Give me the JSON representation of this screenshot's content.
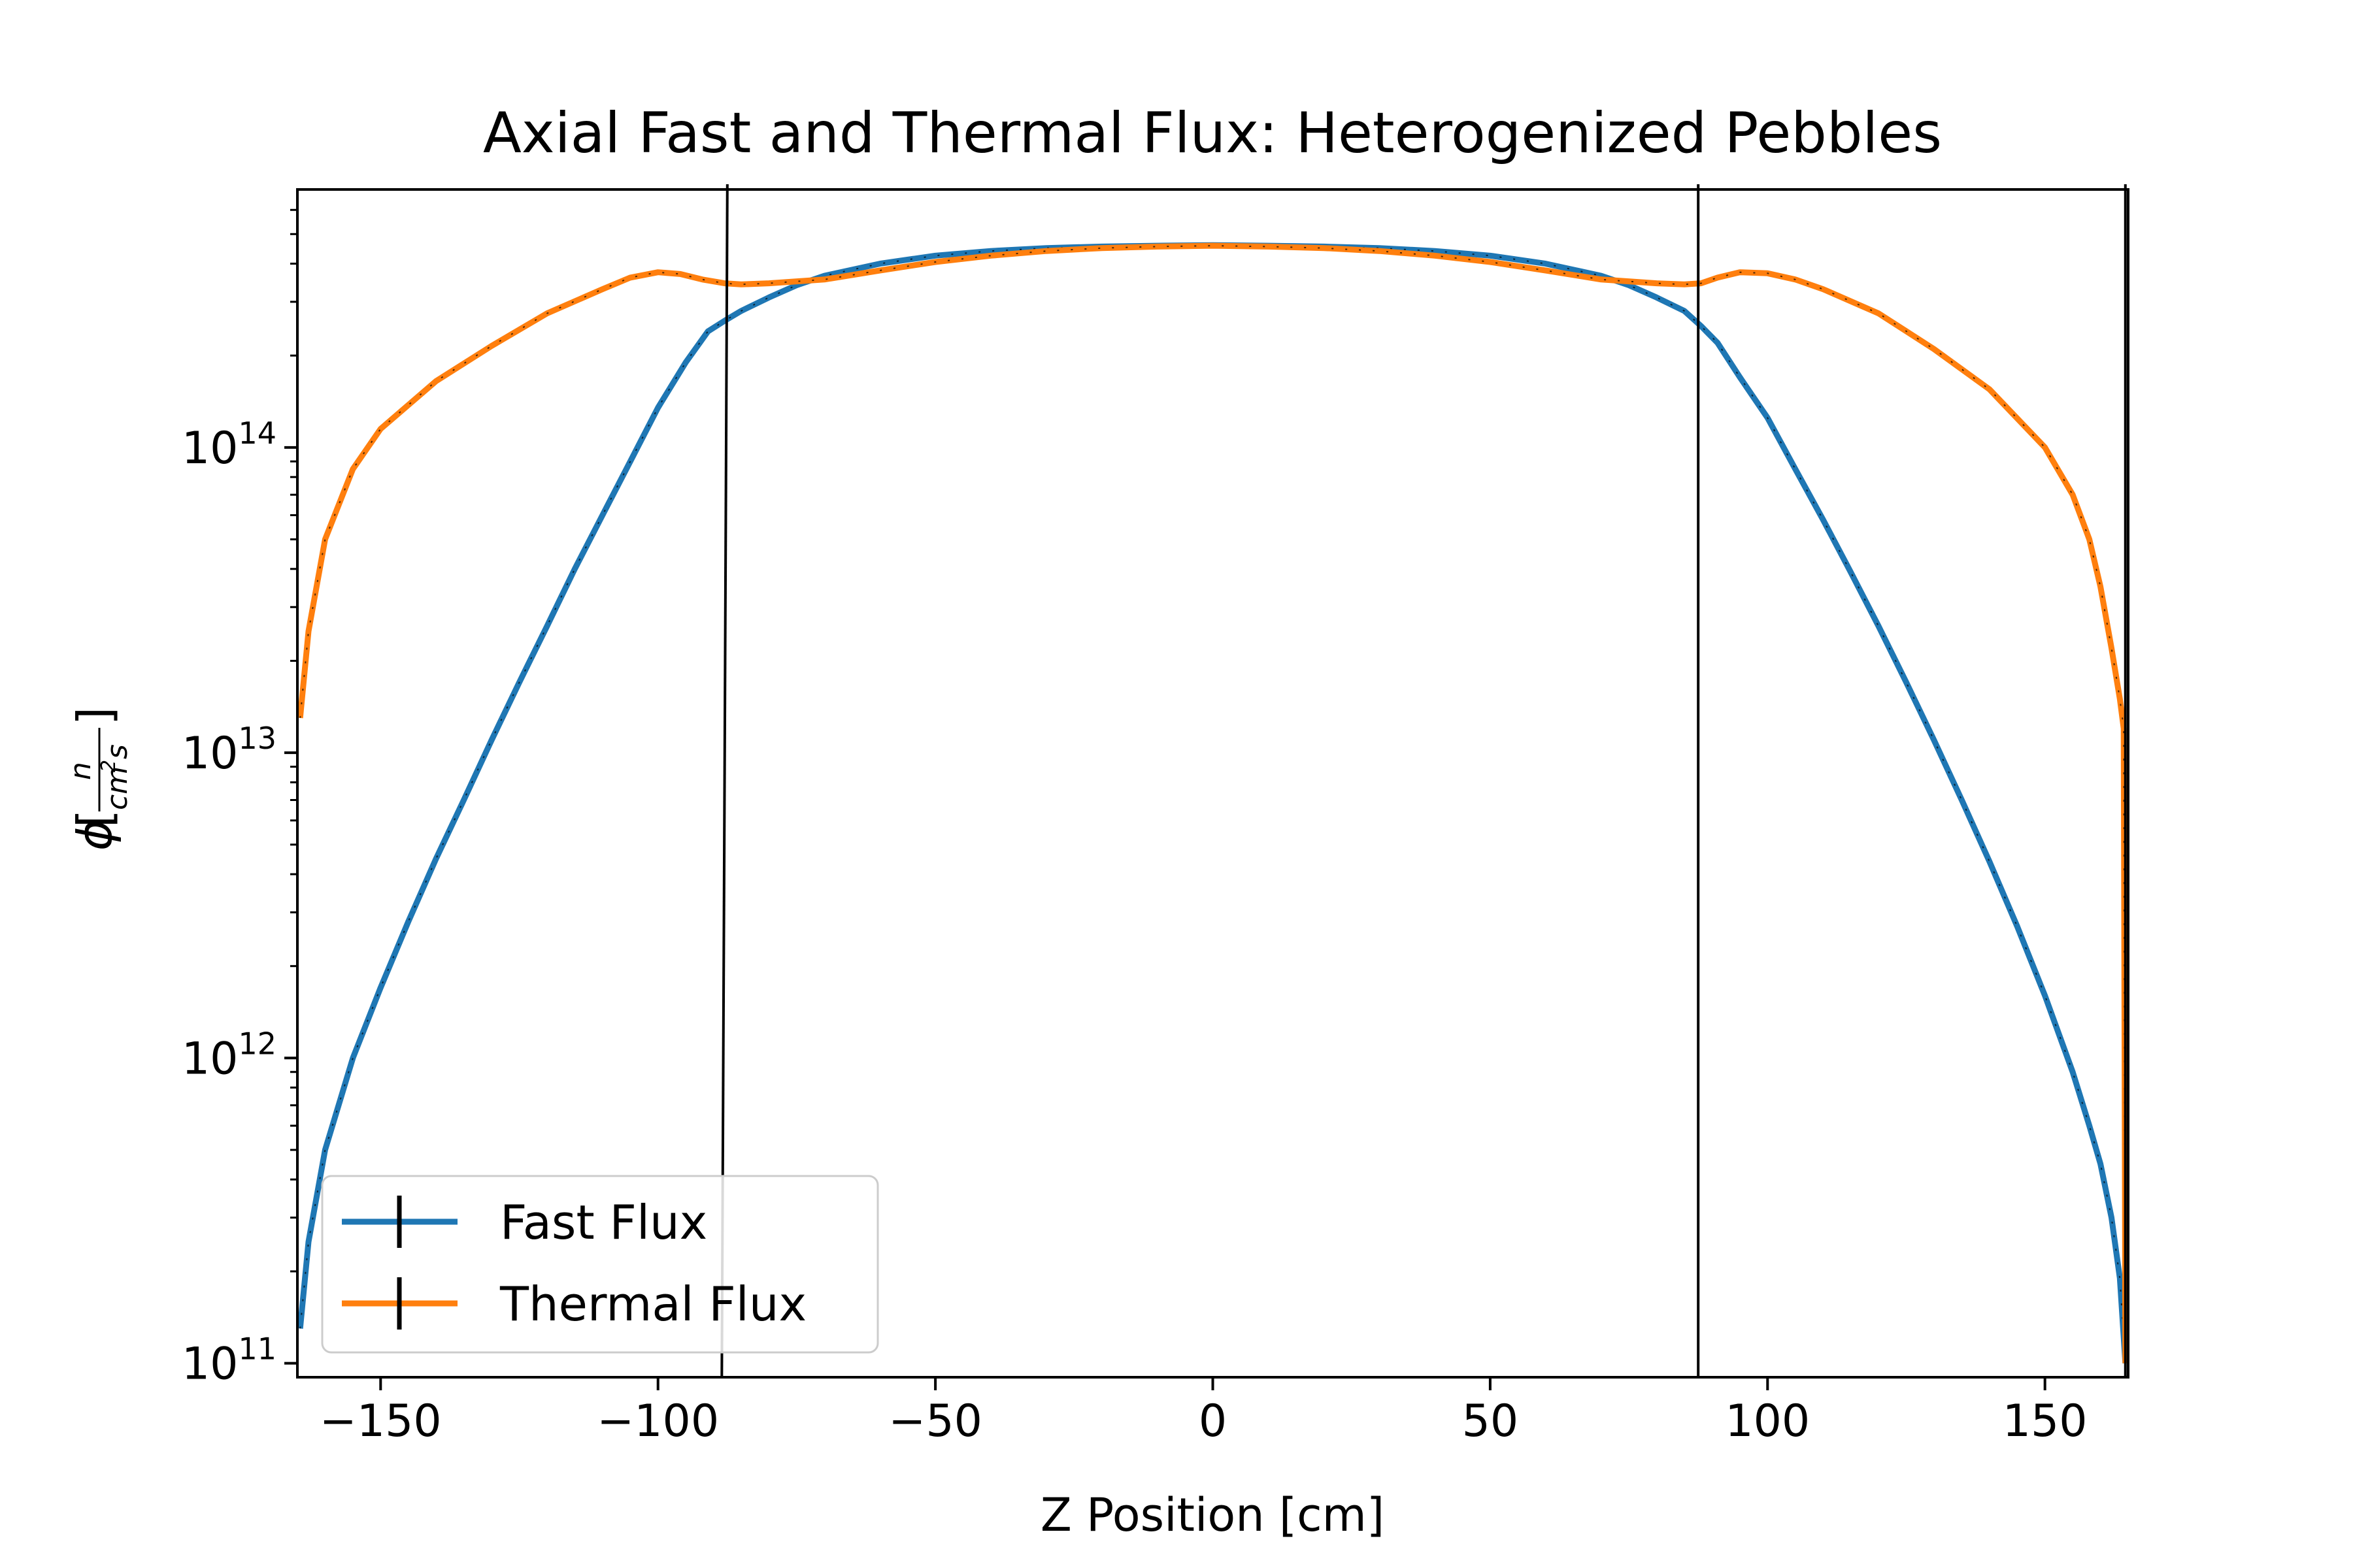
{
  "chart_data": {
    "type": "line",
    "title": "Axial Fast and Thermal Flux: Heterogenized Pebbles",
    "xlabel": "Z Position [cm]",
    "ylabel_symbol": "ϕ",
    "ylabel_num": "n",
    "ylabel_den": "cm",
    "ylabel_den_exp": "2",
    "ylabel_den_tail": "s",
    "xlim": [
      -165,
      165
    ],
    "ylim": [
      90000000000.0,
      700000000000000.0
    ],
    "yscale": "log",
    "x_ticks": [
      -150,
      -100,
      -50,
      0,
      50,
      100,
      150
    ],
    "x_tick_labels": [
      "−150",
      "−100",
      "−50",
      "0",
      "50",
      "100",
      "150"
    ],
    "y_ticks": [
      100000000000.0,
      1000000000000.0,
      10000000000000.0,
      100000000000000.0
    ],
    "y_tick_base": "10",
    "y_tick_exponents": [
      "11",
      "12",
      "13",
      "14"
    ],
    "grid": false,
    "legend_position": "lower-left",
    "boundaries": [
      {
        "x": [
          -87.5,
          -88.5
        ]
      },
      {
        "x": [
          87.5,
          87.5
        ]
      },
      {
        "x": [
          164.5,
          164.5
        ]
      }
    ],
    "series": [
      {
        "name": "Fast Flux",
        "color": "#1f77b4",
        "points": [
          [
            -164.5,
            130000000000.0
          ],
          [
            -163,
            250000000000.0
          ],
          [
            -160,
            500000000000.0
          ],
          [
            -155,
            1000000000000.0
          ],
          [
            -150,
            1700000000000.0
          ],
          [
            -145,
            2800000000000.0
          ],
          [
            -140,
            4500000000000.0
          ],
          [
            -135,
            7000000000000.0
          ],
          [
            -130,
            11000000000000.0
          ],
          [
            -125,
            17000000000000.0
          ],
          [
            -120,
            26000000000000.0
          ],
          [
            -115,
            40000000000000.0
          ],
          [
            -110,
            60000000000000.0
          ],
          [
            -105,
            90000000000000.0
          ],
          [
            -100,
            135000000000000.0
          ],
          [
            -95,
            190000000000000.0
          ],
          [
            -91,
            240000000000000.0
          ],
          [
            -88,
            260000000000000.0
          ],
          [
            -85,
            280000000000000.0
          ],
          [
            -80,
            310000000000000.0
          ],
          [
            -75,
            340000000000000.0
          ],
          [
            -70,
            365000000000000.0
          ],
          [
            -60,
            400000000000000.0
          ],
          [
            -50,
            425000000000000.0
          ],
          [
            -40,
            440000000000000.0
          ],
          [
            -30,
            450000000000000.0
          ],
          [
            -20,
            455000000000000.0
          ],
          [
            -10,
            458000000000000.0
          ],
          [
            0,
            460000000000000.0
          ],
          [
            10,
            458000000000000.0
          ],
          [
            20,
            455000000000000.0
          ],
          [
            30,
            450000000000000.0
          ],
          [
            40,
            440000000000000.0
          ],
          [
            50,
            425000000000000.0
          ],
          [
            60,
            400000000000000.0
          ],
          [
            70,
            365000000000000.0
          ],
          [
            75,
            340000000000000.0
          ],
          [
            80,
            310000000000000.0
          ],
          [
            85,
            280000000000000.0
          ],
          [
            88,
            250000000000000.0
          ],
          [
            91,
            220000000000000.0
          ],
          [
            95,
            170000000000000.0
          ],
          [
            100,
            125000000000000.0
          ],
          [
            105,
            85000000000000.0
          ],
          [
            110,
            58000000000000.0
          ],
          [
            115,
            39000000000000.0
          ],
          [
            120,
            26000000000000.0
          ],
          [
            125,
            17000000000000.0
          ],
          [
            130,
            11000000000000.0
          ],
          [
            135,
            7000000000000.0
          ],
          [
            140,
            4400000000000.0
          ],
          [
            145,
            2700000000000.0
          ],
          [
            150,
            1600000000000.0
          ],
          [
            155,
            900000000000.0
          ],
          [
            158,
            600000000000.0
          ],
          [
            160,
            450000000000.0
          ],
          [
            162,
            300000000000.0
          ],
          [
            163.5,
            190000000000.0
          ],
          [
            164.5,
            100000000000.0
          ]
        ]
      },
      {
        "name": "Thermal Flux",
        "color": "#ff7f0e",
        "points": [
          [
            -164.5,
            13000000000000.0
          ],
          [
            -163,
            25000000000000.0
          ],
          [
            -160,
            50000000000000.0
          ],
          [
            -155,
            85000000000000.0
          ],
          [
            -150,
            115000000000000.0
          ],
          [
            -140,
            165000000000000.0
          ],
          [
            -130,
            215000000000000.0
          ],
          [
            -120,
            275000000000000.0
          ],
          [
            -110,
            330000000000000.0
          ],
          [
            -105,
            360000000000000.0
          ],
          [
            -100,
            375000000000000.0
          ],
          [
            -96,
            370000000000000.0
          ],
          [
            -92,
            355000000000000.0
          ],
          [
            -88,
            345000000000000.0
          ],
          [
            -85,
            342000000000000.0
          ],
          [
            -80,
            345000000000000.0
          ],
          [
            -70,
            355000000000000.0
          ],
          [
            -60,
            380000000000000.0
          ],
          [
            -50,
            405000000000000.0
          ],
          [
            -40,
            425000000000000.0
          ],
          [
            -30,
            440000000000000.0
          ],
          [
            -20,
            450000000000000.0
          ],
          [
            -10,
            455000000000000.0
          ],
          [
            0,
            458000000000000.0
          ],
          [
            10,
            455000000000000.0
          ],
          [
            20,
            450000000000000.0
          ],
          [
            30,
            440000000000000.0
          ],
          [
            40,
            425000000000000.0
          ],
          [
            50,
            405000000000000.0
          ],
          [
            60,
            380000000000000.0
          ],
          [
            70,
            355000000000000.0
          ],
          [
            80,
            345000000000000.0
          ],
          [
            85,
            342000000000000.0
          ],
          [
            88,
            345000000000000.0
          ],
          [
            91,
            360000000000000.0
          ],
          [
            95,
            375000000000000.0
          ],
          [
            100,
            372000000000000.0
          ],
          [
            105,
            355000000000000.0
          ],
          [
            110,
            330000000000000.0
          ],
          [
            120,
            275000000000000.0
          ],
          [
            130,
            210000000000000.0
          ],
          [
            140,
            155000000000000.0
          ],
          [
            150,
            100000000000000.0
          ],
          [
            155,
            70000000000000.0
          ],
          [
            158,
            50000000000000.0
          ],
          [
            160,
            35000000000000.0
          ],
          [
            162,
            22000000000000.0
          ],
          [
            163.5,
            15000000000000.0
          ],
          [
            164.2,
            12000000000000.0
          ],
          [
            164.5,
            100000000000.0
          ]
        ]
      }
    ]
  }
}
